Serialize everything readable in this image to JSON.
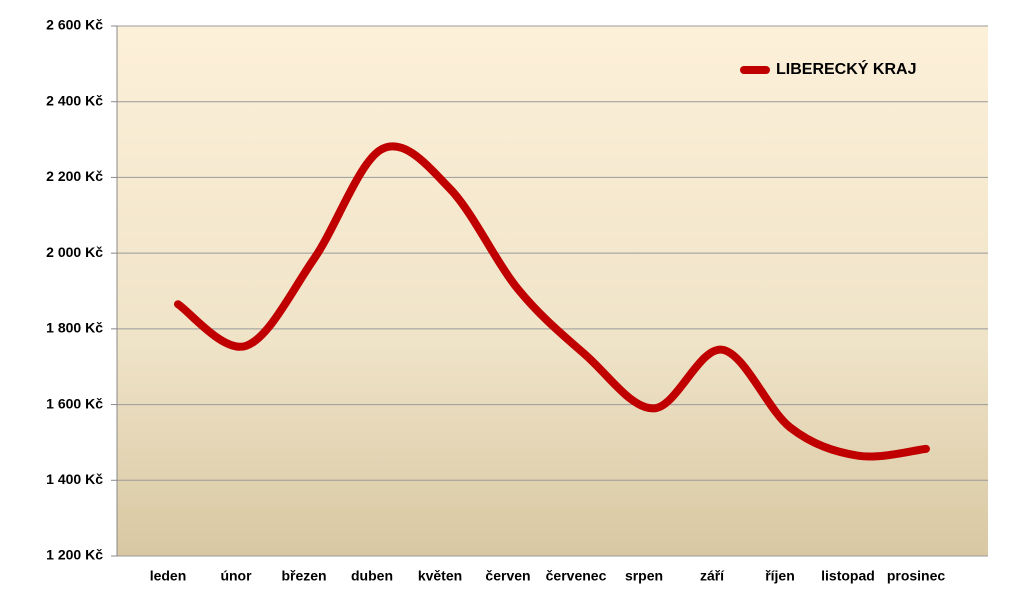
{
  "chart_data": {
    "type": "line",
    "categories": [
      "leden",
      "únor",
      "březen",
      "duben",
      "květen",
      "červen",
      "červenec",
      "srpen",
      "září",
      "říjen",
      "listopad",
      "prosinec"
    ],
    "series": [
      {
        "name": "LIBERECKÝ KRAJ",
        "color": "#c00000",
        "values": [
          1865,
          1755,
          1985,
          2275,
          2170,
          1905,
          1730,
          1590,
          1745,
          1540,
          1465,
          1483
        ]
      }
    ],
    "ylim": [
      1200,
      2600
    ],
    "yticks": [
      {
        "value": 1200,
        "label": "1 200 Kč"
      },
      {
        "value": 1400,
        "label": "1 400 Kč"
      },
      {
        "value": 1600,
        "label": "1 600 Kč"
      },
      {
        "value": 1800,
        "label": "1 800 Kč"
      },
      {
        "value": 2000,
        "label": "2 000 Kč"
      },
      {
        "value": 2200,
        "label": "2 200 Kč"
      },
      {
        "value": 2400,
        "label": "2 400 Kč"
      },
      {
        "value": 2600,
        "label": "2 600 Kč"
      }
    ],
    "grid": true,
    "legend": "top-right",
    "smooth": true
  }
}
